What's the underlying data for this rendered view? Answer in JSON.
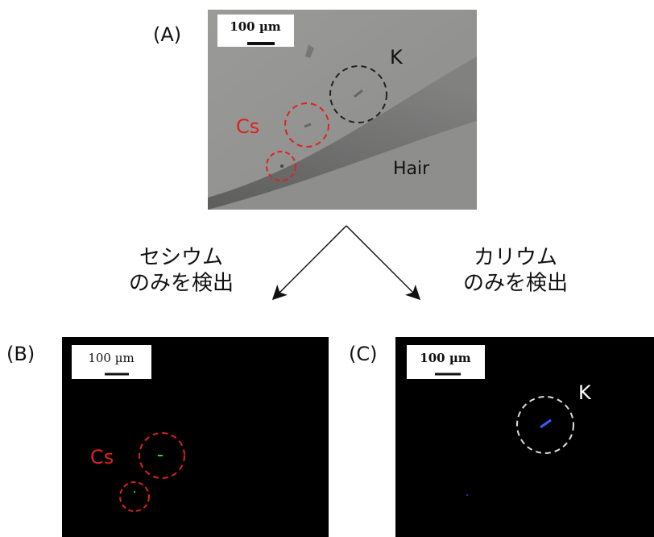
{
  "panels": [
    {
      "label": "(A)",
      "scale_bar": "100 µm",
      "annotations": [
        "K",
        "Cs",
        "Hair"
      ]
    },
    {
      "label": "(B)",
      "scale_bar": "100 µm",
      "annotations": [
        "Cs"
      ]
    },
    {
      "label": "(C)",
      "scale_bar": "100 µm",
      "annotations": [
        "K"
      ]
    }
  ],
  "arrows": [
    {
      "label": [
        "セシウム",
        "のみを検出"
      ]
    },
    {
      "label": [
        "カリウム",
        "のみを検出"
      ]
    }
  ]
}
